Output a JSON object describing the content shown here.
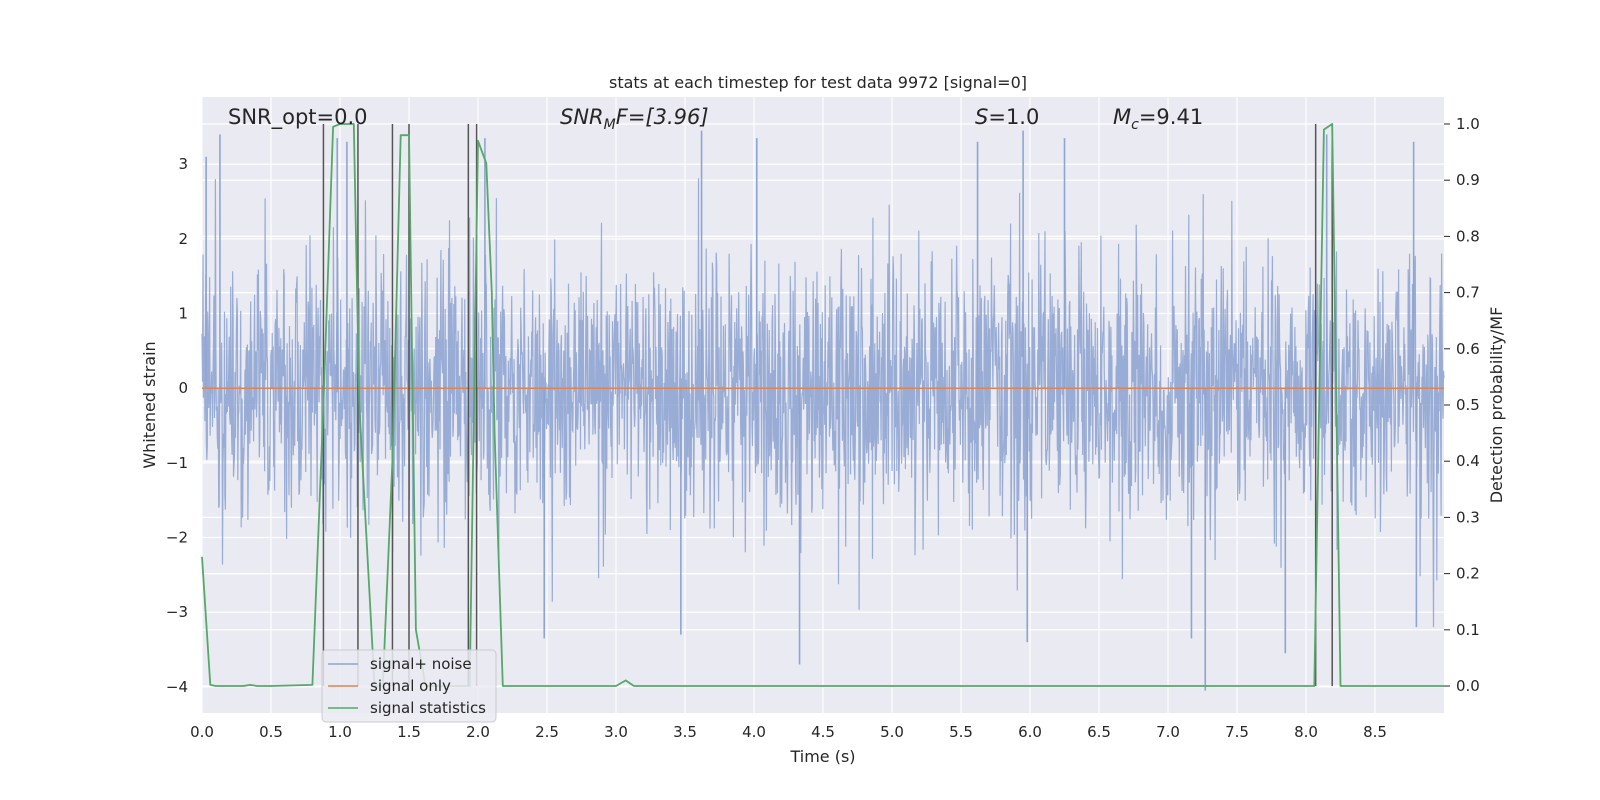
{
  "chart_data": {
    "type": "line",
    "title": "stats at each timestep for test data 9972 [signal=0]",
    "xlabel": "Time (s)",
    "ylabel": "Whitened strain",
    "y2label": "Detection probability/MF",
    "xlim": [
      0.0,
      9.0
    ],
    "ylim": [
      -4.35,
      3.9
    ],
    "y2lim": [
      -0.048,
      1.048
    ],
    "xticks": [
      0.0,
      0.5,
      1.0,
      1.5,
      2.0,
      2.5,
      3.0,
      3.5,
      4.0,
      4.5,
      5.0,
      5.5,
      6.0,
      6.5,
      7.0,
      7.5,
      8.0,
      8.5
    ],
    "xtick_labels": [
      "0.0",
      "0.5",
      "1.0",
      "1.5",
      "2.0",
      "2.5",
      "3.0",
      "3.5",
      "4.0",
      "4.5",
      "5.0",
      "5.5",
      "6.0",
      "6.5",
      "7.0",
      "7.5",
      "8.0",
      "8.5"
    ],
    "yticks": [
      -4,
      -3,
      -2,
      -1,
      0,
      1,
      2,
      3
    ],
    "ytick_labels": [
      "−4",
      "−3",
      "−2",
      "−1",
      "0",
      "1",
      "2",
      "3"
    ],
    "y2ticks": [
      0.0,
      0.1,
      0.2,
      0.3,
      0.4,
      0.5,
      0.6,
      0.7,
      0.8,
      0.9,
      1.0
    ],
    "y2tick_labels": [
      "0.0",
      "0.1",
      "0.2",
      "0.3",
      "0.4",
      "0.5",
      "0.6",
      "0.7",
      "0.8",
      "0.9",
      "1.0"
    ],
    "annotations": {
      "snr_opt": "SNR_opt=0.0",
      "snr_mf_sym": "SNR",
      "snr_mf_sub": "M",
      "snr_mf_rest": "F=[3.96]",
      "s_sym": "S",
      "s_rest": "=1.0",
      "mc_sym": "M",
      "mc_sub": "c",
      "mc_rest": "=9.41"
    },
    "legend": {
      "position": "lower-left",
      "entries": [
        {
          "label": "signal+ noise",
          "color": "#8fa5d1"
        },
        {
          "label": "signal only",
          "color": "#dd8452"
        },
        {
          "label": "signal statistics",
          "color": "#55a868"
        }
      ]
    },
    "series": [
      {
        "name": "signal+ noise",
        "axis": "left",
        "style": "noise",
        "color": "#8fa5d1",
        "description_note": "whitened strain noise, approx. symmetric around 0",
        "amplitude_envelope": 1.75,
        "extremes": [
          {
            "x": 0.03,
            "y": 3.1
          },
          {
            "x": 0.13,
            "y": 3.4
          },
          {
            "x": 0.98,
            "y": 3.35
          },
          {
            "x": 1.05,
            "y": 3.3
          },
          {
            "x": 2.05,
            "y": 3.35
          },
          {
            "x": 3.62,
            "y": 3.45
          },
          {
            "x": 4.02,
            "y": 3.35
          },
          {
            "x": 5.62,
            "y": 3.3
          },
          {
            "x": 5.95,
            "y": 3.45
          },
          {
            "x": 6.25,
            "y": 3.35
          },
          {
            "x": 8.15,
            "y": 3.4
          },
          {
            "x": 8.78,
            "y": 3.3
          },
          {
            "x": 2.48,
            "y": -3.35
          },
          {
            "x": 3.47,
            "y": -3.3
          },
          {
            "x": 4.33,
            "y": -3.7
          },
          {
            "x": 5.98,
            "y": -3.4
          },
          {
            "x": 7.17,
            "y": -3.35
          },
          {
            "x": 7.27,
            "y": -4.05
          },
          {
            "x": 7.85,
            "y": -3.55
          },
          {
            "x": 8.8,
            "y": -3.2
          }
        ]
      },
      {
        "name": "signal only",
        "axis": "left",
        "color": "#dd8452",
        "x": [
          0.0,
          9.0
        ],
        "y": [
          0.0,
          0.0
        ]
      },
      {
        "name": "signal statistics",
        "axis": "right",
        "color": "#55a868",
        "x": [
          0.0,
          0.06,
          0.1,
          0.3,
          0.35,
          0.4,
          0.5,
          0.8,
          0.88,
          0.95,
          1.0,
          1.1,
          1.14,
          1.25,
          1.31,
          1.38,
          1.44,
          1.5,
          1.55,
          1.62,
          1.94,
          2.0,
          2.06,
          2.1,
          2.12,
          2.18,
          2.5,
          3.0,
          3.07,
          3.13,
          3.5,
          8.06,
          8.13,
          8.19,
          8.25,
          8.5,
          9.0
        ],
        "y": [
          0.23,
          0.002,
          0.0,
          0.0,
          0.002,
          0.0,
          0.0,
          0.002,
          0.5,
          0.995,
          1.0,
          1.0,
          0.5,
          0.0,
          0.0,
          0.4,
          0.98,
          0.98,
          0.1,
          0.0,
          0.0,
          0.97,
          0.93,
          0.7,
          0.45,
          0.0,
          0.0,
          0.0,
          0.01,
          0.0,
          0.0,
          0.0,
          0.99,
          1.0,
          0.0,
          0.0,
          0.0
        ]
      }
    ],
    "vertical_markers": {
      "color": "#555555",
      "x": [
        0.88,
        1.13,
        1.38,
        1.5,
        1.93,
        1.99,
        8.07,
        8.19
      ],
      "bottom_y2": [
        0.0,
        0.0,
        0.0,
        0.0,
        0.0,
        0.0,
        0.0,
        0.0
      ]
    }
  }
}
